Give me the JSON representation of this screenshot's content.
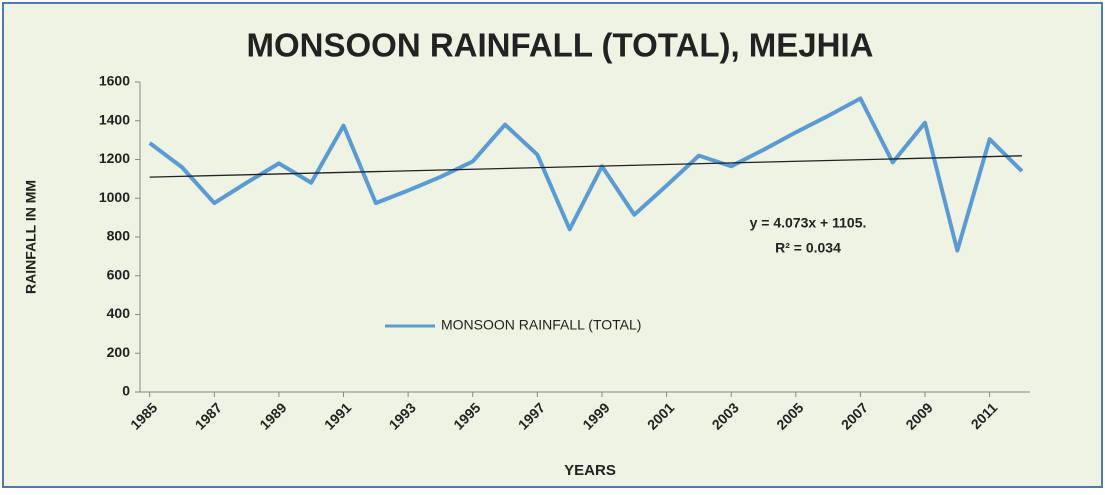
{
  "chart_data": {
    "type": "line",
    "title": "MONSOON RAINFALL (TOTAL), MEJHIA",
    "x_label": "YEARS",
    "y_label": "RAINFALL IN MM",
    "x": [
      1985,
      1986,
      1987,
      1988,
      1989,
      1990,
      1991,
      1992,
      1993,
      1994,
      1995,
      1996,
      1997,
      1998,
      1999,
      2000,
      2001,
      2002,
      2003,
      2004,
      2005,
      2006,
      2007,
      2008,
      2009,
      2010,
      2011,
      2012
    ],
    "series": [
      {
        "name": "MONSOON RAINFALL (TOTAL)",
        "color": "#5b9bd5",
        "values": [
          1285,
          1160,
          975,
          1080,
          1180,
          1080,
          1375,
          975,
          1040,
          1110,
          1190,
          1380,
          1225,
          840,
          1165,
          915,
          1065,
          1220,
          1165,
          1250,
          1340,
          1425,
          1515,
          1185,
          1390,
          730,
          1305,
          1140
        ]
      }
    ],
    "trendline": {
      "slope": 4.073,
      "intercept": 1105,
      "color": "#222222"
    },
    "annotations": [
      "y = 4.073x + 1105.",
      "R² = 0.034"
    ],
    "xlim": [
      1984.7,
      2012.25
    ],
    "xticks": [
      1985,
      1987,
      1989,
      1991,
      1993,
      1995,
      1997,
      1999,
      2001,
      2003,
      2005,
      2007,
      2009,
      2011
    ],
    "ylim": [
      0,
      1600
    ],
    "yticks": [
      0,
      200,
      400,
      600,
      800,
      1000,
      1200,
      1400,
      1600
    ],
    "grid": false,
    "legend": "center"
  }
}
